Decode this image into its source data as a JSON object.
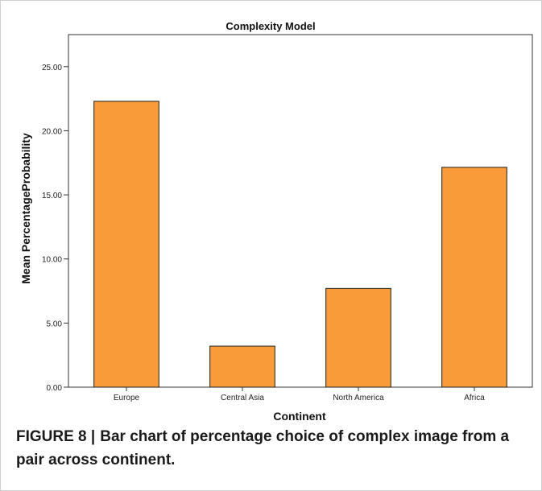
{
  "chart_data": {
    "type": "bar",
    "title": "Complexity Model",
    "xlabel": "Continent",
    "ylabel": "Mean PercentageProbability",
    "categories": [
      "Europe",
      "Central Asia",
      "North America",
      "Africa"
    ],
    "values": [
      22.3,
      3.2,
      7.7,
      17.15
    ],
    "ylim": [
      0,
      27.5
    ],
    "yticks": [
      0,
      5,
      10,
      15,
      20,
      25
    ],
    "ytick_labels": [
      "0.00",
      "5.00",
      "10.00",
      "15.00",
      "20.00",
      "25.00"
    ],
    "grid": false,
    "legend": "none",
    "bar_color": "#f99b38",
    "bar_edge_color": "#1f1f1f"
  },
  "caption": {
    "label": "FIGURE 8 |",
    "text": "Bar chart of percentage choice of complex image from a pair across continent."
  }
}
